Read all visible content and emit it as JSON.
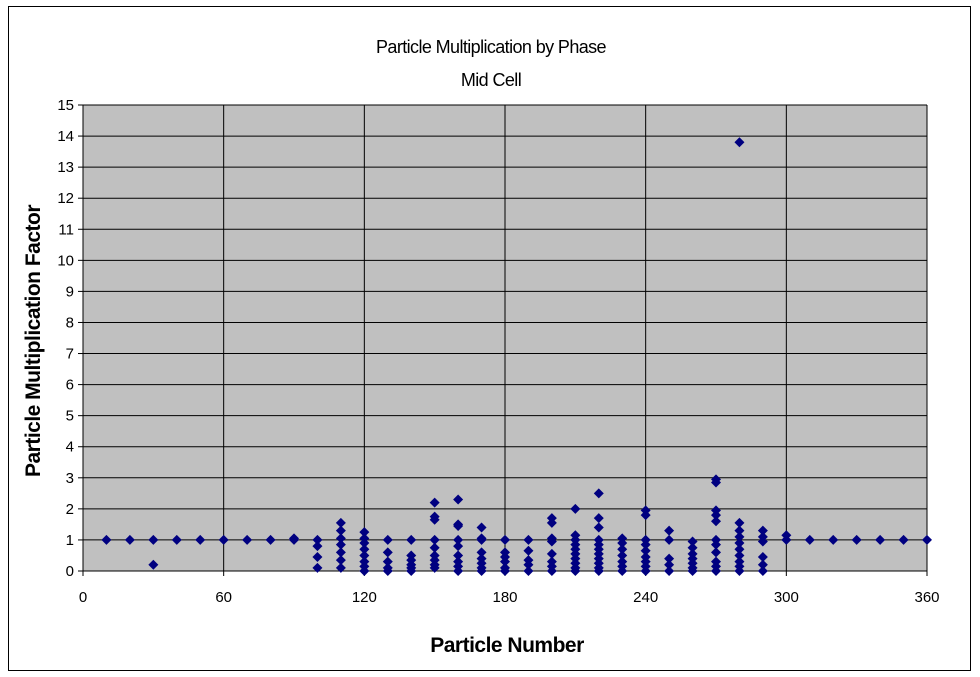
{
  "chart_data": {
    "type": "scatter",
    "title": "Particle Multiplication by Phase",
    "subtitle": "Mid Cell",
    "xlabel": "Particle Number",
    "ylabel": "Particle Multiplication Factor",
    "xlim": [
      0,
      360
    ],
    "ylim": [
      0,
      15
    ],
    "xticks": [
      0,
      60,
      120,
      180,
      240,
      300,
      360
    ],
    "yticks": [
      0,
      1,
      2,
      3,
      4,
      5,
      6,
      7,
      8,
      9,
      10,
      11,
      12,
      13,
      14,
      15
    ],
    "grid": true,
    "legend": "none",
    "colors": {
      "marker": "#000080",
      "plot_background": "#c0c0c0",
      "grid": "#000000"
    },
    "series": [
      {
        "points": [
          [
            10,
            1.0
          ],
          [
            20,
            1.0
          ],
          [
            30,
            1.0
          ],
          [
            30,
            0.2
          ],
          [
            40,
            1.0
          ],
          [
            50,
            1.0
          ],
          [
            60,
            1.0
          ],
          [
            70,
            1.0
          ],
          [
            80,
            1.0
          ],
          [
            90,
            1.0
          ],
          [
            90,
            1.05
          ],
          [
            100,
            0.1
          ],
          [
            100,
            0.45
          ],
          [
            100,
            0.8
          ],
          [
            100,
            1.0
          ],
          [
            110,
            0.1
          ],
          [
            110,
            0.35
          ],
          [
            110,
            0.6
          ],
          [
            110,
            0.85
          ],
          [
            110,
            1.05
          ],
          [
            110,
            1.3
          ],
          [
            110,
            1.55
          ],
          [
            120,
            0.0
          ],
          [
            120,
            0.15
          ],
          [
            120,
            0.3
          ],
          [
            120,
            0.5
          ],
          [
            120,
            0.7
          ],
          [
            120,
            0.9
          ],
          [
            120,
            1.05
          ],
          [
            120,
            1.25
          ],
          [
            130,
            0.0
          ],
          [
            130,
            0.1
          ],
          [
            130,
            0.3
          ],
          [
            130,
            0.6
          ],
          [
            130,
            1.0
          ],
          [
            140,
            0.0
          ],
          [
            140,
            0.1
          ],
          [
            140,
            0.2
          ],
          [
            140,
            0.35
          ],
          [
            140,
            0.5
          ],
          [
            140,
            1.0
          ],
          [
            150,
            0.1
          ],
          [
            150,
            0.2
          ],
          [
            150,
            0.35
          ],
          [
            150,
            0.5
          ],
          [
            150,
            0.75
          ],
          [
            150,
            1.0
          ],
          [
            150,
            1.65
          ],
          [
            150,
            1.75
          ],
          [
            150,
            2.2
          ],
          [
            160,
            0.0
          ],
          [
            160,
            0.15
          ],
          [
            160,
            0.3
          ],
          [
            160,
            0.5
          ],
          [
            160,
            0.8
          ],
          [
            160,
            1.0
          ],
          [
            160,
            1.45
          ],
          [
            160,
            1.5
          ],
          [
            160,
            2.3
          ],
          [
            170,
            0.0
          ],
          [
            170,
            0.1
          ],
          [
            170,
            0.25
          ],
          [
            170,
            0.4
          ],
          [
            170,
            0.6
          ],
          [
            170,
            1.0
          ],
          [
            170,
            1.05
          ],
          [
            170,
            1.4
          ],
          [
            180,
            0.0
          ],
          [
            180,
            0.1
          ],
          [
            180,
            0.3
          ],
          [
            180,
            0.45
          ],
          [
            180,
            0.6
          ],
          [
            180,
            1.0
          ],
          [
            190,
            0.0
          ],
          [
            190,
            0.2
          ],
          [
            190,
            0.35
          ],
          [
            190,
            0.65
          ],
          [
            190,
            1.0
          ],
          [
            200,
            0.0
          ],
          [
            200,
            0.15
          ],
          [
            200,
            0.3
          ],
          [
            200,
            0.55
          ],
          [
            200,
            0.95
          ],
          [
            200,
            1.05
          ],
          [
            200,
            1.55
          ],
          [
            200,
            1.7
          ],
          [
            210,
            0.0
          ],
          [
            210,
            0.1
          ],
          [
            210,
            0.25
          ],
          [
            210,
            0.4
          ],
          [
            210,
            0.55
          ],
          [
            210,
            0.7
          ],
          [
            210,
            0.85
          ],
          [
            210,
            1.0
          ],
          [
            210,
            1.15
          ],
          [
            210,
            2.0
          ],
          [
            220,
            0.0
          ],
          [
            220,
            0.1
          ],
          [
            220,
            0.25
          ],
          [
            220,
            0.4
          ],
          [
            220,
            0.55
          ],
          [
            220,
            0.7
          ],
          [
            220,
            0.85
          ],
          [
            220,
            1.0
          ],
          [
            220,
            1.4
          ],
          [
            220,
            1.7
          ],
          [
            220,
            2.5
          ],
          [
            230,
            0.0
          ],
          [
            230,
            0.15
          ],
          [
            230,
            0.3
          ],
          [
            230,
            0.5
          ],
          [
            230,
            0.7
          ],
          [
            230,
            0.9
          ],
          [
            230,
            1.05
          ],
          [
            240,
            0.0
          ],
          [
            240,
            0.15
          ],
          [
            240,
            0.3
          ],
          [
            240,
            0.45
          ],
          [
            240,
            0.65
          ],
          [
            240,
            0.85
          ],
          [
            240,
            1.0
          ],
          [
            240,
            1.8
          ],
          [
            240,
            1.95
          ],
          [
            250,
            0.0
          ],
          [
            250,
            0.2
          ],
          [
            250,
            0.4
          ],
          [
            250,
            1.0
          ],
          [
            250,
            1.3
          ],
          [
            260,
            0.0
          ],
          [
            260,
            0.1
          ],
          [
            260,
            0.25
          ],
          [
            260,
            0.4
          ],
          [
            260,
            0.55
          ],
          [
            260,
            0.75
          ],
          [
            260,
            0.95
          ],
          [
            270,
            0.0
          ],
          [
            270,
            0.15
          ],
          [
            270,
            0.3
          ],
          [
            270,
            0.6
          ],
          [
            270,
            0.85
          ],
          [
            270,
            1.0
          ],
          [
            270,
            1.6
          ],
          [
            270,
            1.8
          ],
          [
            270,
            1.95
          ],
          [
            270,
            2.85
          ],
          [
            270,
            2.95
          ],
          [
            280,
            0.0
          ],
          [
            280,
            0.15
          ],
          [
            280,
            0.3
          ],
          [
            280,
            0.5
          ],
          [
            280,
            0.7
          ],
          [
            280,
            0.9
          ],
          [
            280,
            1.1
          ],
          [
            280,
            1.3
          ],
          [
            280,
            1.55
          ],
          [
            280,
            13.8
          ],
          [
            290,
            0.0
          ],
          [
            290,
            0.2
          ],
          [
            290,
            0.45
          ],
          [
            290,
            0.95
          ],
          [
            290,
            1.1
          ],
          [
            290,
            1.3
          ],
          [
            300,
            1.0
          ],
          [
            300,
            1.15
          ],
          [
            310,
            1.0
          ],
          [
            320,
            1.0
          ],
          [
            330,
            1.0
          ],
          [
            340,
            1.0
          ],
          [
            350,
            1.0
          ],
          [
            360,
            1.0
          ]
        ]
      }
    ]
  }
}
